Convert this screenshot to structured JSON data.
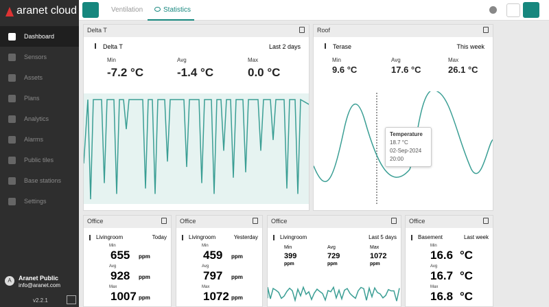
{
  "brand": "aranet cloud",
  "tabs": [
    "Ventilation",
    "Statistics"
  ],
  "sidebar": {
    "items": [
      "Dashboard",
      "Sensors",
      "Assets",
      "Plans",
      "Analytics",
      "Alarms",
      "Public tiles",
      "Base stations",
      "Settings"
    ],
    "user": {
      "initial": "A",
      "name": "Aranet Public",
      "email": "info@aranet.com"
    },
    "version": "v2.2.1"
  },
  "widgets": [
    {
      "title": "Delta T",
      "sensor": "Delta T",
      "period": "Last 2 days",
      "stats": [
        {
          "label": "Min",
          "value": "-7.2",
          "unit": "°C"
        },
        {
          "label": "Avg",
          "value": "-1.4",
          "unit": "°C"
        },
        {
          "label": "Max",
          "value": "0.0",
          "unit": "°C"
        }
      ]
    },
    {
      "title": "Roof",
      "sensor": "Terase",
      "period": "This week",
      "stats": [
        {
          "label": "Min",
          "value": "9.6",
          "unit": "°C"
        },
        {
          "label": "Avg",
          "value": "17.6",
          "unit": "°C"
        },
        {
          "label": "Max",
          "value": "26.1",
          "unit": "°C"
        }
      ]
    },
    {
      "title": "Office",
      "sensor": "Livingroom",
      "period": "Today",
      "stats": [
        {
          "label": "Min",
          "value": "655",
          "unit": "ppm"
        },
        {
          "label": "Avg",
          "value": "928",
          "unit": "ppm"
        },
        {
          "label": "Max",
          "value": "1007",
          "unit": "ppm"
        }
      ]
    },
    {
      "title": "Office",
      "sensor": "Livingroom",
      "period": "Yesterday",
      "stats": [
        {
          "label": "Min",
          "value": "459",
          "unit": "ppm"
        },
        {
          "label": "Avg",
          "value": "797",
          "unit": "ppm"
        },
        {
          "label": "Max",
          "value": "1072",
          "unit": "ppm"
        }
      ]
    },
    {
      "title": "Office",
      "sensor": "Livingroom",
      "period": "Last 5 days",
      "stats": [
        {
          "label": "Min",
          "value": "399",
          "unit": "ppm"
        },
        {
          "label": "Avg",
          "value": "729",
          "unit": "ppm"
        },
        {
          "label": "Max",
          "value": "1072",
          "unit": "ppm"
        }
      ]
    },
    {
      "title": "Office",
      "sensor": "Basement",
      "period": "Last week",
      "stats": [
        {
          "label": "Min",
          "value": "16.6",
          "unit": "°C"
        },
        {
          "label": "Avg",
          "value": "16.7",
          "unit": "°C"
        },
        {
          "label": "Max",
          "value": "16.8",
          "unit": "°C"
        }
      ]
    }
  ],
  "tooltip": {
    "title": "Temperature",
    "value": "18.7 °C",
    "date": "02-Sep-2024",
    "time": "20:00"
  }
}
